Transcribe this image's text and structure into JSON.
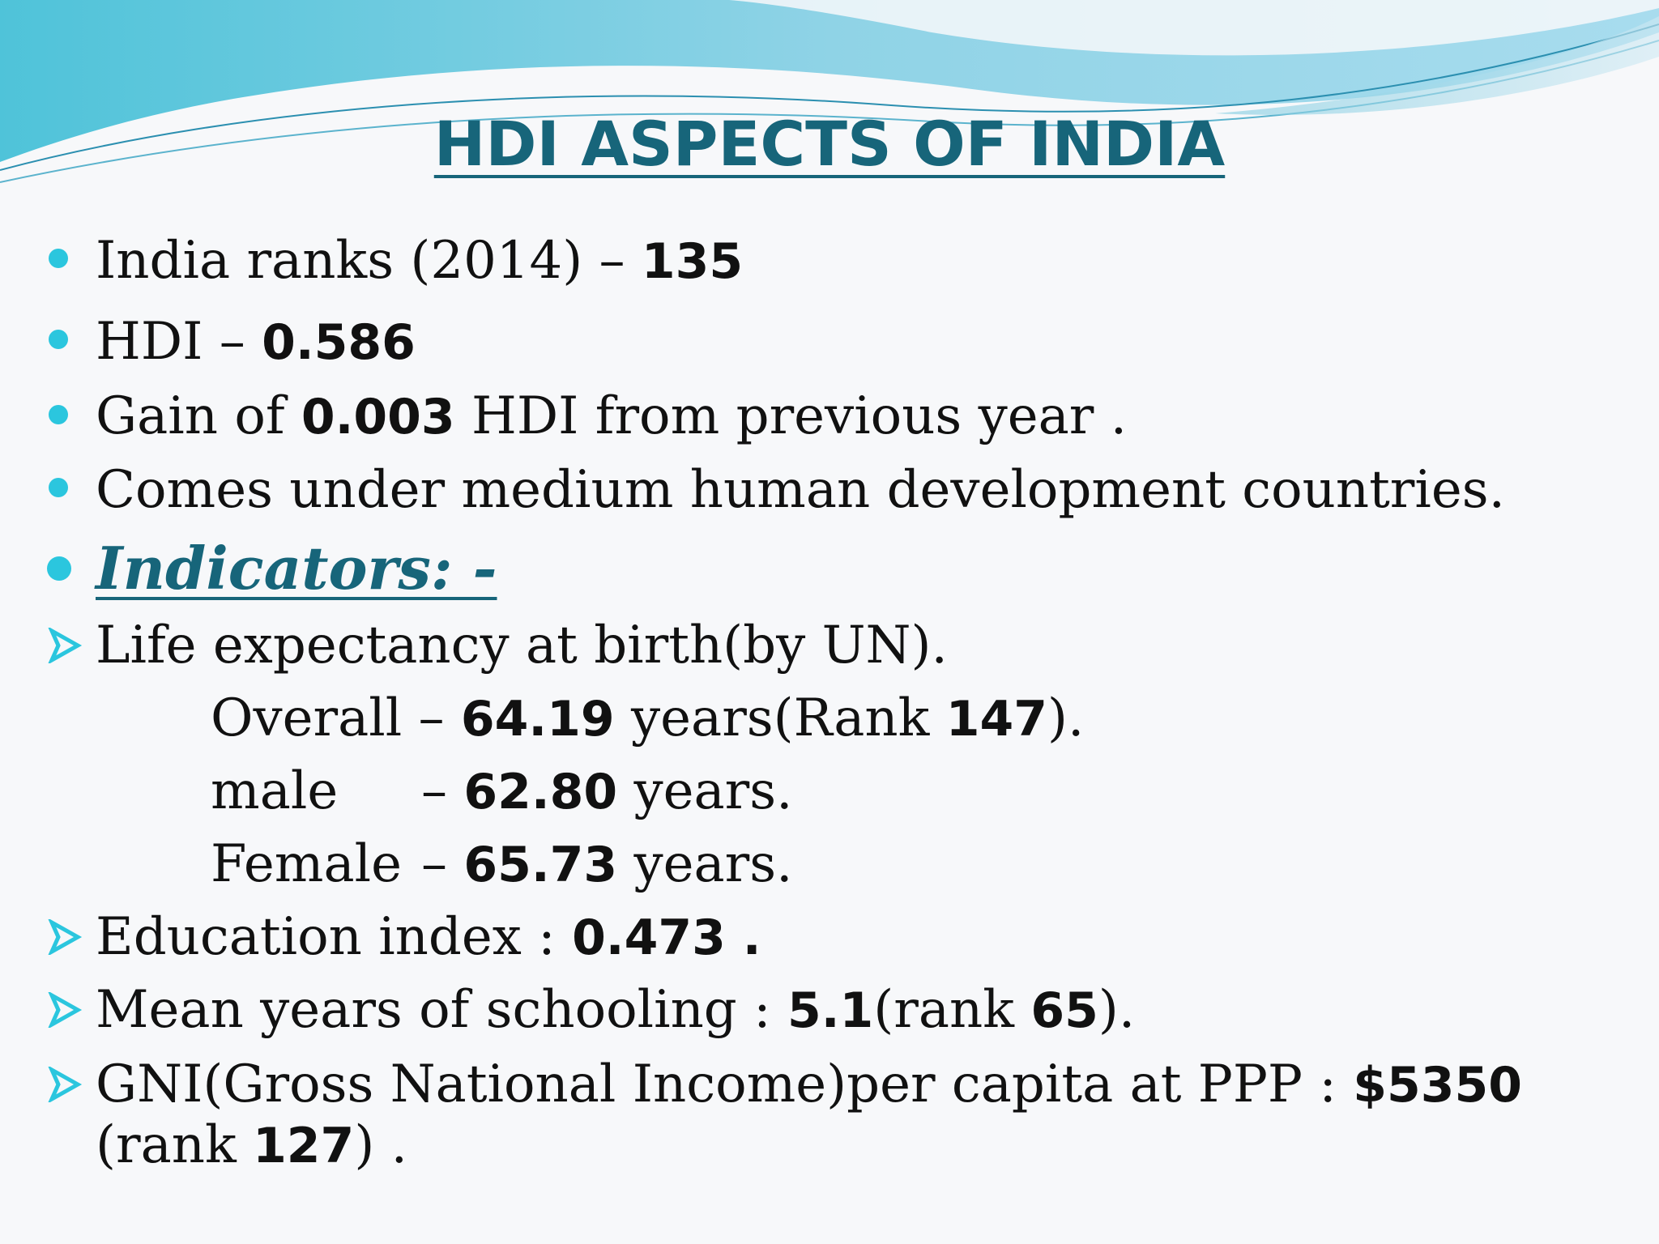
{
  "slide": {
    "title": "HDI ASPECTS OF INDIA",
    "bullets": [
      {
        "label": "India ranks (2014) – ",
        "value": "135"
      },
      {
        "label": "HDI –  ",
        "value": "0.586"
      },
      {
        "prefix": "Gain of ",
        "value": "0.003",
        "suffix": " HDI from previous year ."
      },
      {
        "label": "Comes under medium human development countries."
      }
    ],
    "indicators_heading": "Indicators: -",
    "life_expectancy": {
      "label": "Life expectancy at birth(by UN).",
      "overall": {
        "label": "Overall –  ",
        "value": "64.19",
        "suffix": " years(Rank  ",
        "rank": "147",
        "end": ")."
      },
      "male": {
        "label": "male",
        "dash": "–  ",
        "value": "62.80",
        "suffix": " years."
      },
      "female": {
        "label": "Female",
        "dash": "–  ",
        "value": "65.73",
        "suffix": " years."
      }
    },
    "education": {
      "label": "Education index  :  ",
      "value": "0.473 ."
    },
    "schooling": {
      "label": "Mean years of schooling :  ",
      "value": "5.1",
      "mid": "(rank ",
      "rank": "65",
      "end": ")."
    },
    "gni": {
      "label": "GNI(Gross National Income)per capita at PPP : ",
      "value": "$5350",
      "line2_prefix": "(rank ",
      "rank": "127",
      "line2_end": ") ."
    }
  },
  "colors": {
    "accent": "#17657a",
    "bullet": "#2bc6de"
  }
}
